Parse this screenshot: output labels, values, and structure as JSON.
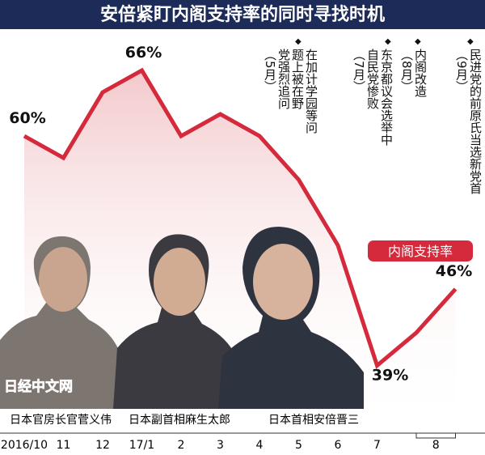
{
  "chart_data": {
    "type": "line",
    "title": "安倍紧盯内阁支持率的同时寻找时机",
    "categories": [
      "2016/10",
      "11",
      "12",
      "17/1",
      "2",
      "3",
      "4",
      "5",
      "6",
      "7",
      "8",
      null
    ],
    "series": [
      {
        "name": "内阁支持率",
        "color": "#d42a3c",
        "values": [
          60,
          58,
          64,
          66,
          60,
          62,
          60,
          56,
          50,
          39,
          42,
          46
        ],
        "value_labels": [
          "60%",
          null,
          null,
          "66%",
          null,
          null,
          null,
          null,
          null,
          "39%",
          null,
          "46%"
        ]
      }
    ],
    "ylim": [
      32,
      70
    ],
    "annotations": [
      {
        "lines": [
          "在加计学园等问",
          "题上被在野",
          "党强烈追问",
          "（5月）"
        ]
      },
      {
        "lines": [
          "东京都议会选举中",
          "自民党惨败",
          "（7月）"
        ]
      },
      {
        "lines": [
          "内阁改造",
          "（8月）"
        ]
      },
      {
        "lines": [
          "民进党的前原氏当选新党首",
          "（9月）"
        ]
      }
    ],
    "captions": [
      "日本官房长官菅义伟",
      "日本副首相麻生太郎",
      "日本首相安倍晋三"
    ],
    "watermark": "日经中文网"
  }
}
